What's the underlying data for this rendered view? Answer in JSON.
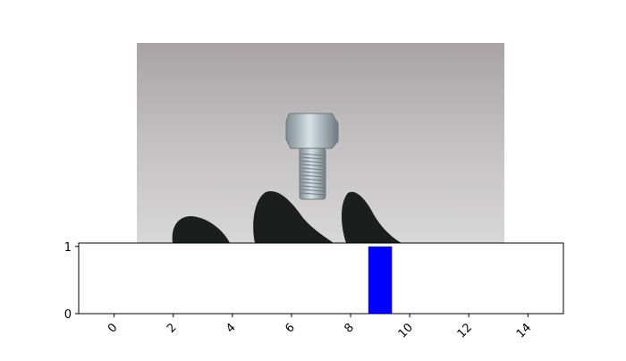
{
  "image_panel": {
    "subject": "hex bolt",
    "background_color": "#b9b6b7",
    "glove_color": "#1c1e1d"
  },
  "chart_data": {
    "type": "bar",
    "x": [
      0,
      1,
      2,
      3,
      4,
      5,
      6,
      7,
      8,
      9,
      10,
      11,
      12,
      13,
      14
    ],
    "values": [
      0,
      0,
      0,
      0,
      0,
      0,
      0,
      0,
      0,
      1,
      0,
      0,
      0,
      0,
      0
    ],
    "bar_color": "#0000ff",
    "xlim": [
      -1.2,
      15.2
    ],
    "ylim": [
      0,
      1.05
    ],
    "xticks": [
      "0",
      "2",
      "4",
      "6",
      "8",
      "10",
      "12",
      "14"
    ],
    "yticks": [
      "0",
      "1"
    ],
    "xtick_rotation": 45,
    "grid": false,
    "title": "",
    "xlabel": "",
    "ylabel": ""
  }
}
